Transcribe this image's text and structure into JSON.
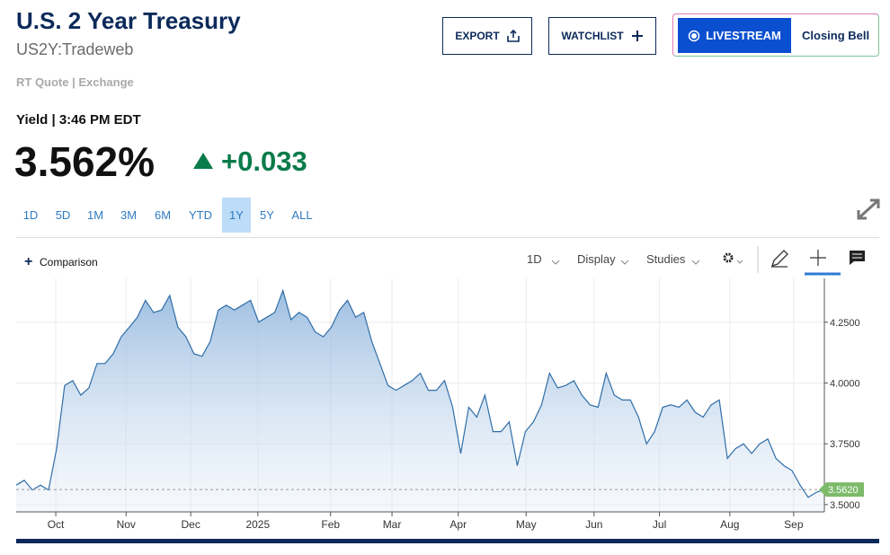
{
  "header": {
    "title": "U.S. 2 Year Treasury",
    "symbol": "US2Y:Tradeweb",
    "quote_source": "RT Quote | Exchange"
  },
  "buttons": {
    "export": "EXPORT",
    "watchlist": "WATCHLIST",
    "livestream": "LIVESTREAM",
    "closing_bell": "Closing Bell"
  },
  "quote": {
    "label": "Yield | 3:46 PM EDT",
    "price": "3.562%",
    "change": "+0.033"
  },
  "ranges": [
    "1D",
    "5D",
    "1M",
    "3M",
    "6M",
    "YTD",
    "1Y",
    "5Y",
    "ALL"
  ],
  "selected_range": "1Y",
  "toolbar": {
    "comparison": "Comparison",
    "interval": "1D",
    "display": "Display",
    "studies": "Studies"
  },
  "chart_data": {
    "type": "area",
    "grid": true,
    "series": [
      {
        "color": "#2f6ea8",
        "values": [
          3.58,
          3.6,
          3.56,
          3.58,
          3.56,
          3.73,
          3.99,
          4.01,
          3.95,
          3.98,
          4.08,
          4.08,
          4.12,
          4.19,
          4.23,
          4.27,
          4.34,
          4.29,
          4.3,
          4.36,
          4.23,
          4.19,
          4.12,
          4.11,
          4.17,
          4.3,
          4.32,
          4.3,
          4.32,
          4.34,
          4.25,
          4.27,
          4.29,
          4.38,
          4.26,
          4.29,
          4.27,
          4.21,
          4.19,
          4.23,
          4.3,
          4.34,
          4.27,
          4.29,
          4.17,
          4.08,
          3.99,
          3.97,
          3.99,
          4.01,
          4.04,
          3.97,
          3.97,
          4.01,
          3.9,
          3.71,
          3.9,
          3.86,
          3.95,
          3.8,
          3.8,
          3.84,
          3.66,
          3.8,
          3.84,
          3.91,
          4.04,
          3.98,
          3.99,
          4.01,
          3.95,
          3.91,
          3.9,
          4.04,
          3.95,
          3.93,
          3.93,
          3.86,
          3.75,
          3.8,
          3.9,
          3.91,
          3.9,
          3.93,
          3.88,
          3.86,
          3.91,
          3.93,
          3.69,
          3.73,
          3.75,
          3.71,
          3.75,
          3.77,
          3.69,
          3.66,
          3.64,
          3.58,
          3.53,
          3.55,
          3.562
        ]
      }
    ],
    "xlim": [
      0,
      100
    ],
    "xticks": [
      {
        "value": 4.9,
        "label": "Oct"
      },
      {
        "value": 13.6,
        "label": "Nov"
      },
      {
        "value": 21.6,
        "label": "Dec"
      },
      {
        "value": 29.9,
        "label": "2025"
      },
      {
        "value": 38.9,
        "label": "Feb"
      },
      {
        "value": 46.5,
        "label": "Mar"
      },
      {
        "value": 54.7,
        "label": "Apr"
      },
      {
        "value": 63.1,
        "label": "May"
      },
      {
        "value": 71.5,
        "label": "Jun"
      },
      {
        "value": 79.6,
        "label": "Jul"
      },
      {
        "value": 88.3,
        "label": "Aug"
      },
      {
        "value": 96.2,
        "label": "Sep"
      }
    ],
    "ylim": [
      3.47,
      4.43
    ],
    "yticks": [
      {
        "value": 3.5,
        "label": "3.5000"
      },
      {
        "value": 3.75,
        "label": "3.7500"
      },
      {
        "value": 4.0,
        "label": "4.0000"
      },
      {
        "value": 4.25,
        "label": "4.2500"
      }
    ],
    "price_tag": {
      "value": 3.562,
      "label": "3.5620",
      "color": "#7dbb6b"
    }
  }
}
